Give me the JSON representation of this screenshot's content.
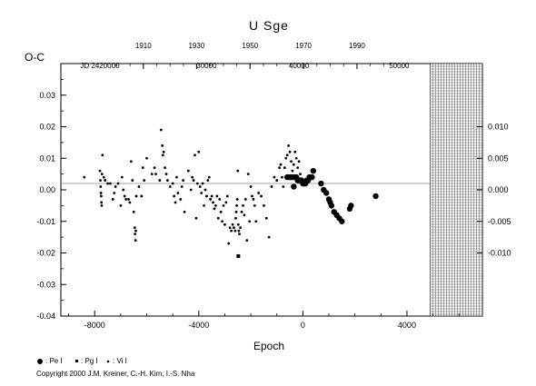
{
  "chart_data": {
    "type": "scatter",
    "title": "U  Sge",
    "xlabel": "Epoch",
    "ylabel": "O-C",
    "xlim": [
      -9300,
      6900
    ],
    "ylim": [
      -0.04,
      0.04
    ],
    "xticks": [
      -8000,
      -4000,
      0,
      4000
    ],
    "xtick_labels": [
      "-8000",
      "-4000",
      "0",
      "4000"
    ],
    "yticks": [
      -0.04,
      -0.03,
      -0.02,
      -0.01,
      0.0,
      0.01,
      0.02,
      0.03
    ],
    "ytick_labels": [
      "-0.04",
      "-0.03",
      "-0.02",
      "-0.01",
      "0.00",
      "0.01",
      "0.02",
      "0.03"
    ],
    "right_ytick_values": [
      -0.01,
      -0.005,
      0.0,
      0.005,
      0.01
    ],
    "right_ytick_labels": [
      "-0.010",
      "-0.005",
      "0.000",
      "0.005",
      "0.010"
    ],
    "top_year_axis": {
      "labels": [
        "1910",
        "1930",
        "1950",
        "1970",
        "1990"
      ],
      "epochs": [
        -6130,
        -4085,
        -2030,
        25,
        2080
      ]
    },
    "top_jd_axis": {
      "labels": [
        "JD 2420000",
        "30000",
        "40000",
        "50000"
      ],
      "epochs": [
        -7800,
        -3700,
        -150,
        3700
      ]
    },
    "future_region_start": 4900,
    "grid": false,
    "legend": {
      "placement": "bottom-left",
      "entries": [
        {
          "marker": "large-dot",
          "label": ": Pe I"
        },
        {
          "marker": "square",
          "label": ": Pg I"
        },
        {
          "marker": "small-dot",
          "label": ": Vi I"
        }
      ]
    },
    "series": [
      {
        "marker": "small-dot",
        "points": [
          [
            -8400,
            0.004
          ],
          [
            -7800,
            0.006
          ],
          [
            -7780,
            0.003
          ],
          [
            -7770,
            0.001
          ],
          [
            -7760,
            -0.001
          ],
          [
            -7750,
            -0.002
          ],
          [
            -7740,
            -0.004
          ],
          [
            -7730,
            -0.005
          ],
          [
            -7720,
            0.005
          ],
          [
            -7700,
            0.011
          ],
          [
            -7650,
            0.004
          ],
          [
            -7600,
            0.003
          ],
          [
            -7500,
            0.002
          ],
          [
            -7400,
            0.002
          ],
          [
            -7300,
            -0.003
          ],
          [
            -7250,
            -0.001
          ],
          [
            -7200,
            0.001
          ],
          [
            -7100,
            0.002
          ],
          [
            -7000,
            -0.005
          ],
          [
            -6950,
            0.004
          ],
          [
            -6900,
            0.0
          ],
          [
            -6850,
            -0.002
          ],
          [
            -6800,
            -0.003
          ],
          [
            -6700,
            -0.003
          ],
          [
            -6650,
            -0.004
          ],
          [
            -6600,
            0.009
          ],
          [
            -6550,
            0.003
          ],
          [
            -6500,
            -0.007
          ],
          [
            -6460,
            -0.012
          ],
          [
            -6450,
            -0.014
          ],
          [
            -6430,
            -0.016
          ],
          [
            -6420,
            -0.013
          ],
          [
            -6400,
            -0.002
          ],
          [
            -6300,
            0.001
          ],
          [
            -6200,
            -0.002
          ],
          [
            -6150,
            0.007
          ],
          [
            -6100,
            0.003
          ],
          [
            -6000,
            0.01
          ],
          [
            -5800,
            0.005
          ],
          [
            -5700,
            0.007
          ],
          [
            -5650,
            0.005
          ],
          [
            -5500,
            0.003
          ],
          [
            -5450,
            0.019
          ],
          [
            -5400,
            0.014
          ],
          [
            -5380,
            0.011
          ],
          [
            -5350,
            0.012
          ],
          [
            -5300,
            0.007
          ],
          [
            -5250,
            0.005
          ],
          [
            -5200,
            0.003
          ],
          [
            -5100,
            0.001
          ],
          [
            -5000,
            0.002
          ],
          [
            -4950,
            -0.002
          ],
          [
            -4900,
            -0.004
          ],
          [
            -4850,
            0.004
          ],
          [
            -4800,
            -0.001
          ],
          [
            -4700,
            -0.003
          ],
          [
            -4650,
            0.001
          ],
          [
            -4600,
            0.003
          ],
          [
            -4550,
            -0.007
          ],
          [
            -4400,
            0.006
          ],
          [
            -4300,
            0.0
          ],
          [
            -4250,
            0.004
          ],
          [
            -4200,
            0.003
          ],
          [
            -4150,
            0.011
          ],
          [
            -4100,
            -0.009
          ],
          [
            -4050,
            0.002
          ],
          [
            -4000,
            0.012
          ],
          [
            -3950,
            0.001
          ],
          [
            -3900,
            -0.001
          ],
          [
            -3850,
            0.002
          ],
          [
            -3800,
            -0.005
          ],
          [
            -3750,
            0.0
          ],
          [
            -3700,
            -0.002
          ],
          [
            -3650,
            0.003
          ],
          [
            -3600,
            0.004
          ],
          [
            -3550,
            -0.003
          ],
          [
            -3500,
            -0.002
          ],
          [
            -3450,
            -0.004
          ],
          [
            -3400,
            -0.006
          ],
          [
            -3350,
            -0.005
          ],
          [
            -3300,
            -0.002
          ],
          [
            -3250,
            -0.009
          ],
          [
            -3200,
            -0.003
          ],
          [
            -3150,
            -0.007
          ],
          [
            -3100,
            -0.01
          ],
          [
            -3050,
            -0.005
          ],
          [
            -3000,
            -0.011
          ],
          [
            -2950,
            -0.004
          ],
          [
            -2900,
            -0.002
          ],
          [
            -2850,
            -0.017
          ],
          [
            -2800,
            -0.012
          ],
          [
            -2750,
            -0.013
          ],
          [
            -2700,
            -0.011
          ],
          [
            -2650,
            -0.012
          ],
          [
            -2600,
            -0.013
          ],
          [
            -2580,
            -0.009
          ],
          [
            -2560,
            -0.007
          ],
          [
            -2540,
            -0.005
          ],
          [
            -2520,
            -0.003
          ],
          [
            -2500,
            0.006
          ],
          [
            -2480,
            -0.011
          ],
          [
            -2460,
            -0.013
          ],
          [
            -2440,
            -0.014
          ],
          [
            -2400,
            -0.012
          ],
          [
            -2350,
            -0.007
          ],
          [
            -2300,
            -0.005
          ],
          [
            -2250,
            -0.008
          ],
          [
            -2200,
            -0.003
          ],
          [
            -2150,
            -0.016
          ],
          [
            -2100,
            0.005
          ],
          [
            -2050,
            -0.01
          ],
          [
            -2000,
            0.001
          ],
          [
            -1950,
            -0.002
          ],
          [
            -1900,
            -0.003
          ],
          [
            -1850,
            -0.005
          ],
          [
            -1800,
            -0.01
          ],
          [
            -1700,
            -0.001
          ],
          [
            -1600,
            -0.002
          ],
          [
            -1500,
            -0.005
          ],
          [
            -1400,
            -0.009
          ],
          [
            -1300,
            -0.015
          ],
          [
            -1200,
            0.001
          ],
          [
            -1100,
            0.004
          ],
          [
            -1000,
            0.003
          ],
          [
            -900,
            0.007
          ],
          [
            -850,
            0.008
          ],
          [
            -800,
            0.004
          ],
          [
            -750,
            0.001
          ],
          [
            -700,
            0.007
          ],
          [
            -650,
            0.01
          ],
          [
            -600,
            0.011
          ],
          [
            -550,
            0.014
          ],
          [
            -500,
            0.012
          ],
          [
            -450,
            0.009
          ],
          [
            -400,
            0.006
          ],
          [
            -350,
            0.008
          ],
          [
            -300,
            0.012
          ],
          [
            -250,
            0.01
          ],
          [
            -200,
            0.007
          ],
          [
            -150,
            0.009
          ],
          [
            -100,
            0.005
          ]
        ]
      },
      {
        "marker": "square",
        "points": [
          [
            -2480,
            -0.021
          ]
        ]
      },
      {
        "marker": "large-dot",
        "points": [
          [
            -600,
            0.004
          ],
          [
            -550,
            0.004
          ],
          [
            -500,
            0.004
          ],
          [
            -450,
            0.004
          ],
          [
            -400,
            0.004
          ],
          [
            -350,
            0.001
          ],
          [
            -300,
            0.004
          ],
          [
            -250,
            0.004
          ],
          [
            -200,
            0.003
          ],
          [
            -150,
            0.003
          ],
          [
            -100,
            0.003
          ],
          [
            -50,
            0.003
          ],
          [
            0,
            0.002
          ],
          [
            50,
            0.002
          ],
          [
            100,
            0.002
          ],
          [
            150,
            0.003
          ],
          [
            200,
            0.003
          ],
          [
            250,
            0.004
          ],
          [
            300,
            0.004
          ],
          [
            350,
            0.004
          ],
          [
            400,
            0.006
          ],
          [
            700,
            0.002
          ],
          [
            800,
            0.0
          ],
          [
            900,
            -0.001
          ],
          [
            1000,
            -0.003
          ],
          [
            1050,
            -0.004
          ],
          [
            1100,
            -0.005
          ],
          [
            1200,
            -0.007
          ],
          [
            1300,
            -0.008
          ],
          [
            1400,
            -0.009
          ],
          [
            1500,
            -0.01
          ],
          [
            1800,
            -0.006
          ],
          [
            1850,
            -0.005
          ],
          [
            2800,
            -0.002
          ]
        ]
      }
    ]
  },
  "copyright": "Copyright 2000 J.M. Kreiner, C.-H. Kim, I.-S. Nha"
}
